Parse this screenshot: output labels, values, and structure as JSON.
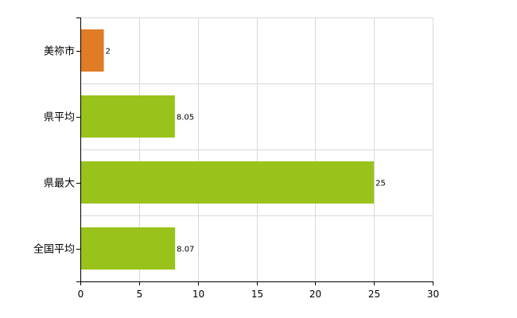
{
  "chart_data": {
    "type": "bar",
    "orientation": "horizontal",
    "categories": [
      "美祢市",
      "県平均",
      "県最大",
      "全国平均"
    ],
    "values": [
      2,
      8.05,
      25,
      8.07
    ],
    "data_labels": [
      "2",
      "8.05",
      "25",
      "8.07"
    ],
    "bar_colors": [
      "#e07b26",
      "#99c31b",
      "#99c31b",
      "#99c31b"
    ],
    "xlim": [
      0,
      30
    ],
    "x_ticks": [
      0,
      5,
      10,
      15,
      20,
      25,
      30
    ],
    "grid": true,
    "title": "",
    "xlabel": "",
    "ylabel": ""
  }
}
